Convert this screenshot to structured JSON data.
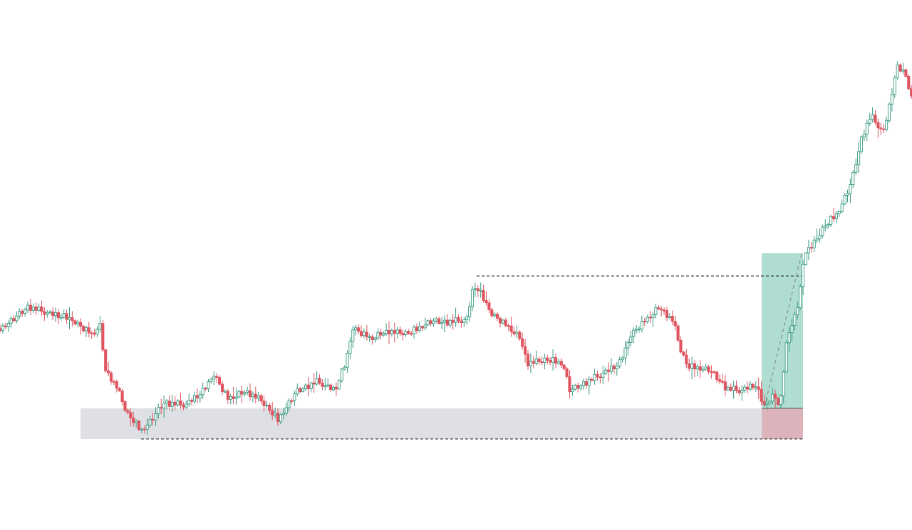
{
  "chart_data": {
    "type": "candlestick",
    "title": "",
    "xlabel": "",
    "ylabel": "",
    "grid": false,
    "legend": "none",
    "colors": {
      "up": "#3a9a82",
      "down": "#e05460",
      "support_zone": "#d4d6dc",
      "target_zone": "#8ecfbe",
      "stop_zone": "#dba7b0",
      "guide_line": "#1a1a1a",
      "projection_line": "#888888"
    },
    "ylim": [
      0,
      745
    ],
    "anchors": [
      [
        0,
        462
      ],
      [
        40,
        430
      ],
      [
        70,
        440
      ],
      [
        100,
        448
      ],
      [
        130,
        470
      ],
      [
        140,
        455
      ],
      [
        148,
        520
      ],
      [
        165,
        545
      ],
      [
        178,
        580
      ],
      [
        198,
        605
      ],
      [
        210,
        592
      ],
      [
        230,
        565
      ],
      [
        260,
        568
      ],
      [
        285,
        550
      ],
      [
        300,
        525
      ],
      [
        320,
        560
      ],
      [
        345,
        550
      ],
      [
        365,
        560
      ],
      [
        390,
        590
      ],
      [
        415,
        550
      ],
      [
        445,
        535
      ],
      [
        470,
        548
      ],
      [
        485,
        510
      ],
      [
        495,
        460
      ],
      [
        520,
        475
      ],
      [
        545,
        465
      ],
      [
        575,
        468
      ],
      [
        605,
        450
      ],
      [
        625,
        452
      ],
      [
        655,
        448
      ],
      [
        665,
        400
      ],
      [
        672,
        408
      ],
      [
        690,
        440
      ],
      [
        715,
        460
      ],
      [
        730,
        475
      ],
      [
        740,
        510
      ],
      [
        765,
        505
      ],
      [
        790,
        510
      ],
      [
        800,
        548
      ],
      [
        825,
        535
      ],
      [
        850,
        522
      ],
      [
        870,
        510
      ],
      [
        885,
        470
      ],
      [
        905,
        450
      ],
      [
        925,
        432
      ],
      [
        945,
        450
      ],
      [
        955,
        490
      ],
      [
        965,
        515
      ],
      [
        995,
        518
      ],
      [
        1020,
        545
      ],
      [
        1040,
        548
      ],
      [
        1060,
        540
      ],
      [
        1072,
        570
      ],
      [
        1085,
        555
      ],
      [
        1095,
        568
      ],
      [
        1105,
        470
      ],
      [
        1118,
        440
      ],
      [
        1130,
        352
      ],
      [
        1140,
        345
      ],
      [
        1155,
        320
      ],
      [
        1175,
        300
      ],
      [
        1195,
        255
      ],
      [
        1210,
        190
      ],
      [
        1222,
        162
      ],
      [
        1240,
        185
      ],
      [
        1250,
        140
      ],
      [
        1258,
        95
      ],
      [
        1270,
        100
      ],
      [
        1280,
        140
      ]
    ],
    "seed": 7,
    "dy": [
      3,
      -1,
      4,
      2,
      -2,
      5,
      1,
      -3,
      4,
      2,
      -2,
      6,
      -1,
      3,
      -4,
      2,
      5,
      1,
      -2,
      3,
      -3,
      4,
      2,
      -5,
      3,
      -1,
      2,
      4,
      -2,
      1,
      5,
      -3,
      2,
      -1,
      4,
      3,
      -4,
      2,
      1,
      -2,
      5,
      -1,
      3,
      -3,
      2,
      4,
      -2,
      1,
      3,
      -5
    ],
    "annotations": {
      "support_zone": {
        "x1": 113,
        "x2": 1127,
        "y1": 574,
        "y2": 617
      },
      "target_zone": {
        "x1": 1069,
        "x2": 1127,
        "y1": 356,
        "y2": 574
      },
      "stop_zone": {
        "x1": 1069,
        "x2": 1127,
        "y1": 574,
        "y2": 617
      },
      "resistance_line": {
        "x1": 669,
        "x2": 1125,
        "y": 388
      },
      "support_line": {
        "x1": 198,
        "x2": 1127,
        "y": 617
      },
      "projection": {
        "x1": 1073,
        "x2": 1125,
        "y1": 572,
        "y2": 357
      }
    },
    "bar_spacing": 3.9
  }
}
